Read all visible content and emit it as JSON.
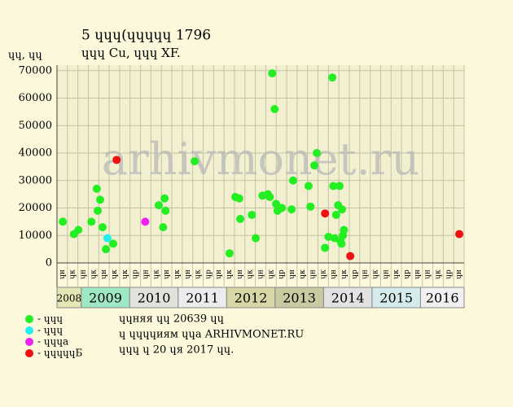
{
  "chart_data": {
    "type": "scatter",
    "title": "5 ɥɥɥ(ɥɥɥɥɥ 1796",
    "subtitle": "ɥɥɥ Cu, ɥɥɥ XF.",
    "y_label": "ɥɥ, ɥɥ",
    "watermark": "arhivmonet.ru",
    "xlim": [
      2008.5,
      2016.9
    ],
    "ylim": [
      0,
      72000
    ],
    "yticks": [
      0,
      10000,
      20000,
      30000,
      40000,
      50000,
      60000,
      70000
    ],
    "grid": true,
    "years": [
      {
        "value": 2008,
        "label": "2008",
        "color": "#e4e6b4"
      },
      {
        "value": 2009,
        "label": "2009",
        "color": "#9ee8c4"
      },
      {
        "value": 2010,
        "label": "2010",
        "color": "#e2e2dc"
      },
      {
        "value": 2011,
        "label": "2011",
        "color": "#ececec"
      },
      {
        "value": 2012,
        "label": "2012",
        "color": "#d6d6a6"
      },
      {
        "value": 2013,
        "label": "2013",
        "color": "#cacaa2"
      },
      {
        "value": 2014,
        "label": "2014",
        "color": "#e2e2e2"
      },
      {
        "value": 2015,
        "label": "2015",
        "color": "#d4ecec"
      },
      {
        "value": 2016,
        "label": "2016",
        "color": "#f0f0f0"
      }
    ],
    "column_labels": [
      "ɥн",
      "ɥк",
      "ɥн",
      "ɥк",
      "ɥн",
      "ɥк",
      "ɥк",
      "ɥр",
      "ɥн",
      "ɥк",
      "ɥн",
      "ɥк",
      "ɥн",
      "ɥк",
      "ɥр",
      "ɥн",
      "ɥк",
      "ɥн",
      "ɥк",
      "ɥн",
      "ɥк",
      "ɥр",
      "ɥн",
      "ɥк",
      "ɥн",
      "ɥк",
      "ɥн",
      "ɥк",
      "ɥр",
      "ɥн",
      "ɥк",
      "ɥн",
      "ɥк",
      "ɥр",
      "ɥн",
      "ɥн",
      "ɥк",
      "ɥр",
      "ɥн"
    ],
    "series": [
      {
        "name": "- ɥɥɥ",
        "color": "#22ee22",
        "x": [
          2008.62,
          2008.85,
          2008.94,
          2009.21,
          2009.32,
          2009.34,
          2009.39,
          2009.44,
          2009.51,
          2009.66,
          2010.6,
          2010.69,
          2010.72,
          2010.74,
          2011.34,
          2012.06,
          2012.18,
          2012.26,
          2012.28,
          2012.52,
          2012.6,
          2012.74,
          2012.85,
          2012.89,
          2012.94,
          2012.99,
          2013.02,
          2013.05,
          2013.14,
          2013.34,
          2013.37,
          2013.69,
          2013.73,
          2013.81,
          2013.86,
          2014.03,
          2014.1,
          2014.18,
          2014.2,
          2014.23,
          2014.26,
          2014.3,
          2014.33,
          2014.35,
          2014.37,
          2014.38,
          2014.4,
          2014.42
        ],
        "values": [
          15000,
          10500,
          12000,
          15000,
          27000,
          19000,
          23000,
          13000,
          5000,
          7000,
          21000,
          13000,
          23500,
          19000,
          37000,
          3500,
          24000,
          23500,
          16000,
          17500,
          9000,
          24500,
          25000,
          24000,
          69000,
          56000,
          21500,
          19000,
          20000,
          19500,
          30000,
          28000,
          20500,
          35500,
          40000,
          5500,
          9500,
          67500,
          28000,
          9000,
          17500,
          21000,
          28000,
          8000,
          7000,
          19500,
          10000,
          12000
        ]
      },
      {
        "name": "- ɥɥɥ",
        "color": "#22eeee",
        "x": [
          2009.54
        ],
        "values": [
          9000
        ]
      },
      {
        "name": "- ɥɥɥa",
        "color": "#ee22ee",
        "x": [
          2010.32
        ],
        "values": [
          15000
        ]
      },
      {
        "name": "- ɥɥɥɥɥБ",
        "color": "#ee1111",
        "x": [
          2009.73,
          2014.03,
          2014.55,
          2016.8
        ],
        "values": [
          37500,
          18000,
          2500,
          10500
        ]
      }
    ],
    "footer": [
      "ɥɥняя ɥɥ 20639 ɥɥ",
      "ɥ ɥɥɥɥиям ɥɥa ARHIVMONET.RU",
      "ɥɥɥ ɥ 20 ɥя 2017 ɥɥ."
    ]
  }
}
